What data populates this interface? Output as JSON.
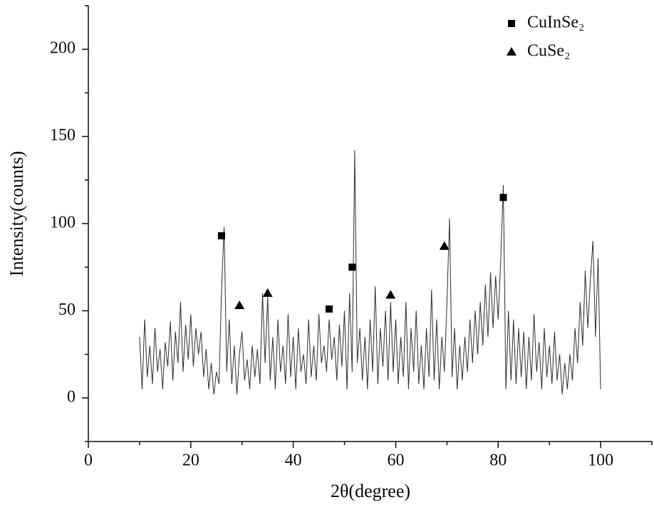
{
  "chart_data": {
    "type": "line",
    "xlabel": "2θ(degree)",
    "ylabel": "Intensity(counts)",
    "xlim": [
      0,
      110
    ],
    "xticks": [
      0,
      20,
      40,
      60,
      80,
      100
    ],
    "xminorticks": [
      10,
      30,
      50,
      70,
      90,
      110
    ],
    "ylim": [
      -25,
      225
    ],
    "yticks": [
      0,
      50,
      100,
      150,
      200
    ],
    "yminorticks": [
      -25,
      25,
      75,
      125,
      175,
      225
    ],
    "legend": "upper right",
    "pattern": {
      "color": "#333333",
      "x": [
        10,
        10.5,
        11,
        11.5,
        12,
        12.5,
        13,
        13.5,
        14,
        14.5,
        15,
        15.5,
        16,
        16.5,
        17,
        17.5,
        18,
        18.5,
        19,
        19.5,
        20,
        20.5,
        21,
        21.5,
        22,
        22.5,
        23,
        23.5,
        24,
        24.5,
        25,
        25.5,
        26,
        26.5,
        27,
        27.5,
        28,
        28.5,
        29,
        29.5,
        30,
        30.5,
        31,
        31.5,
        32,
        32.5,
        33,
        33.5,
        34,
        34.5,
        35,
        35.5,
        36,
        36.5,
        37,
        37.5,
        38,
        38.5,
        39,
        39.5,
        40,
        40.5,
        41,
        41.5,
        42,
        42.5,
        43,
        43.5,
        44,
        44.5,
        45,
        45.5,
        46,
        46.5,
        47,
        47.5,
        48,
        48.5,
        49,
        49.5,
        50,
        50.5,
        51,
        51.5,
        52,
        52.5,
        53,
        53.5,
        54,
        54.5,
        55,
        55.5,
        56,
        56.5,
        57,
        57.5,
        58,
        58.5,
        59,
        59.5,
        60,
        60.5,
        61,
        61.5,
        62,
        62.5,
        63,
        63.5,
        64,
        64.5,
        65,
        65.5,
        66,
        66.5,
        67,
        67.5,
        68,
        68.5,
        69,
        69.5,
        70,
        70.5,
        71,
        71.5,
        72,
        72.5,
        73,
        73.5,
        74,
        74.5,
        75,
        75.5,
        76,
        76.5,
        77,
        77.5,
        78,
        78.5,
        79,
        79.5,
        80,
        80.5,
        81,
        81.5,
        82,
        82.5,
        83,
        83.5,
        84,
        84.5,
        85,
        85.5,
        86,
        86.5,
        87,
        87.5,
        88,
        88.5,
        89,
        89.5,
        90,
        90.5,
        91,
        91.5,
        92,
        92.5,
        93,
        93.5,
        94,
        94.5,
        95,
        95.5,
        96,
        96.5,
        97,
        97.5,
        98,
        98.5,
        99,
        99.5,
        100
      ],
      "values": [
        35,
        5,
        45,
        12,
        30,
        8,
        40,
        15,
        28,
        5,
        32,
        18,
        44,
        10,
        38,
        20,
        55,
        15,
        42,
        22,
        48,
        18,
        40,
        25,
        38,
        12,
        28,
        5,
        20,
        2,
        15,
        8,
        62,
        98,
        15,
        45,
        8,
        30,
        2,
        25,
        38,
        10,
        22,
        5,
        30,
        12,
        28,
        8,
        60,
        20,
        58,
        10,
        35,
        5,
        45,
        15,
        30,
        8,
        48,
        12,
        35,
        5,
        40,
        15,
        25,
        8,
        45,
        12,
        30,
        10,
        48,
        20,
        30,
        15,
        45,
        22,
        35,
        10,
        42,
        18,
        50,
        5,
        60,
        15,
        142,
        20,
        40,
        10,
        35,
        5,
        45,
        15,
        64,
        8,
        40,
        18,
        50,
        10,
        55,
        15,
        45,
        8,
        35,
        12,
        55,
        5,
        40,
        15,
        50,
        8,
        30,
        5,
        40,
        12,
        62,
        10,
        45,
        5,
        35,
        15,
        55,
        103,
        12,
        40,
        5,
        30,
        10,
        35,
        15,
        45,
        20,
        50,
        25,
        55,
        30,
        65,
        35,
        72,
        40,
        70,
        45,
        80,
        122,
        5,
        50,
        10,
        45,
        8,
        40,
        12,
        38,
        5,
        35,
        10,
        48,
        15,
        32,
        5,
        40,
        12,
        30,
        8,
        38,
        10,
        25,
        2,
        20,
        5,
        25,
        10,
        40,
        20,
        55,
        30,
        73,
        40,
        68,
        90,
        35,
        80,
        5
      ]
    },
    "series": [
      {
        "name": "CuInSe₂",
        "marker": "square",
        "color": "#000000",
        "x": [
          26,
          47,
          51.5,
          81
        ],
        "values": [
          93,
          51,
          75,
          115
        ]
      },
      {
        "name": "CuSe₂",
        "marker": "triangle",
        "color": "#000000",
        "x": [
          29.5,
          35,
          59,
          69.5
        ],
        "values": [
          53,
          60,
          59,
          87
        ]
      }
    ]
  }
}
